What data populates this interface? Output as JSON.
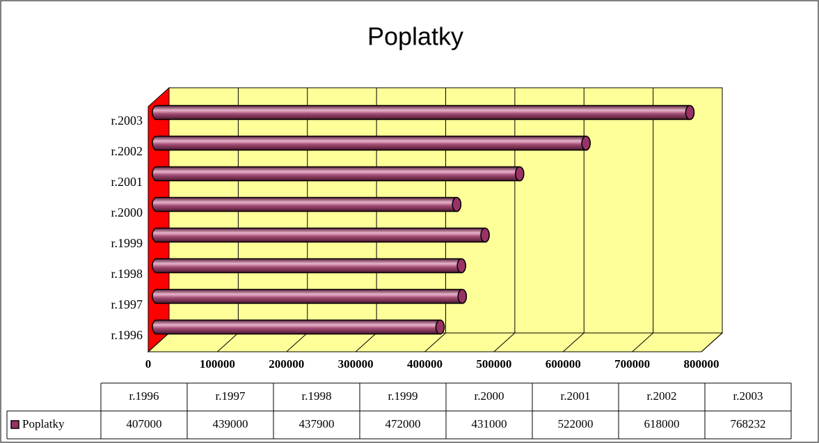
{
  "chart_data": {
    "type": "bar",
    "orientation": "horizontal",
    "title": "Poplatky",
    "categories": [
      "r.1996",
      "r.1997",
      "r.1998",
      "r.1999",
      "r.2000",
      "r.2001",
      "r.2002",
      "r.2003"
    ],
    "series": [
      {
        "name": "Poplatky",
        "color": "#993366",
        "values": [
          407000,
          439000,
          437900,
          472000,
          431000,
          522000,
          618000,
          768232
        ]
      }
    ],
    "xlim": [
      0,
      800000
    ],
    "xticks": [
      0,
      100000,
      200000,
      300000,
      400000,
      500000,
      600000,
      700000,
      800000
    ],
    "grid": true,
    "data_table": true
  }
}
